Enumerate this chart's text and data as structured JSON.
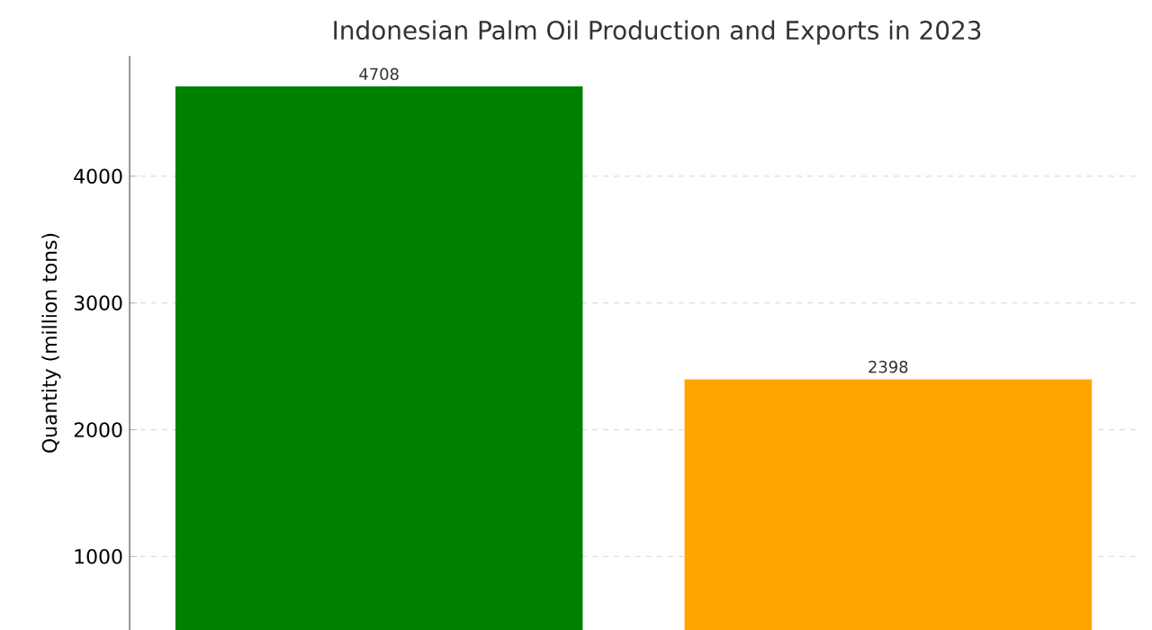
{
  "chart_data": {
    "type": "bar",
    "title": "Indonesian Palm Oil Production and Exports in 2023",
    "ylabel": "Quantity (million tons)",
    "categories": [
      null,
      null
    ],
    "values": [
      4708,
      2398
    ],
    "colors": [
      "#008000",
      "#ffa500"
    ],
    "ylim": [
      420,
      4950
    ],
    "yticks": [
      1000,
      2000,
      3000,
      4000
    ],
    "grid": true,
    "data_labels": true
  }
}
